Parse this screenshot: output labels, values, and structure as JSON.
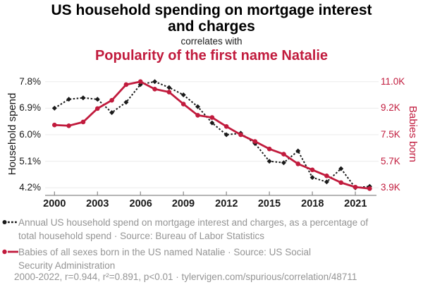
{
  "title": "US household spending on mortgage interest and charges",
  "subtitle_connector": "correlates with",
  "subtitle": "Popularity of the first name Natalie",
  "colors": {
    "series_household": "#1a1a1a",
    "series_natalie": "#c11b3d",
    "grid": "#ebebeb",
    "axis": "#888888",
    "caption_gray": "#949494"
  },
  "chart_data": {
    "type": "line",
    "x": [
      2000,
      2001,
      2002,
      2003,
      2004,
      2005,
      2006,
      2007,
      2008,
      2009,
      2010,
      2011,
      2012,
      2013,
      2014,
      2015,
      2016,
      2017,
      2018,
      2019,
      2020,
      2021,
      2022
    ],
    "series": [
      {
        "name": "Annual US household spend on mortgage interest and charges (% of total household spend)",
        "axis": "left",
        "color": "#1a1a1a",
        "style": "dotted",
        "marker": "diamond",
        "values": [
          6.9,
          7.2,
          7.25,
          7.2,
          6.75,
          7.1,
          7.7,
          7.8,
          7.6,
          7.35,
          6.95,
          6.4,
          6.0,
          6.05,
          5.7,
          5.1,
          5.05,
          5.45,
          4.55,
          4.4,
          4.85,
          4.2,
          4.25
        ]
      },
      {
        "name": "Babies of all sexes born in the US named Natalie (thousands)",
        "axis": "right",
        "color": "#c11b3d",
        "style": "solid",
        "marker": "circle",
        "values": [
          8.1,
          8.05,
          8.3,
          9.2,
          9.75,
          10.8,
          11.0,
          10.5,
          10.3,
          9.5,
          8.75,
          8.6,
          8.0,
          7.45,
          7.0,
          6.5,
          6.15,
          5.5,
          5.1,
          4.7,
          4.25,
          3.95,
          3.85
        ]
      }
    ],
    "left_axis": {
      "label": "Household spend",
      "ticks": [
        "7.8%",
        "6.9%",
        "6.0%",
        "5.1%",
        "4.2%"
      ],
      "tick_values": [
        7.8,
        6.9,
        6.0,
        5.1,
        4.2
      ],
      "range": [
        4.2,
        7.8
      ]
    },
    "right_axis": {
      "label": "Babies born",
      "ticks": [
        "11.0K",
        "9.2K",
        "7.5K",
        "5.7K",
        "3.9K"
      ],
      "tick_values": [
        11.0,
        9.2,
        7.5,
        5.7,
        3.9
      ],
      "range": [
        3.9,
        11.0
      ]
    },
    "x_axis": {
      "ticks": [
        "2000",
        "2003",
        "2006",
        "2009",
        "2012",
        "2015",
        "2018",
        "2021"
      ],
      "tick_values": [
        2000,
        2003,
        2006,
        2009,
        2012,
        2015,
        2018,
        2021
      ],
      "range": [
        2000,
        2022
      ]
    },
    "grid": "horizontal-only",
    "legend_position": "below"
  },
  "legend": [
    {
      "text": "Annual US household spend on mortgage interest and charges, as a percentage of total household spend · Source: Bureau of Labor Statistics"
    },
    {
      "text": "Babies of all sexes born in the US named Natalie · Source: US Social Security Administration"
    }
  ],
  "footer": "2000-2022, r=0.944, r²=0.891, p<0.01 · tylervigen.com/spurious/correlation/48711"
}
